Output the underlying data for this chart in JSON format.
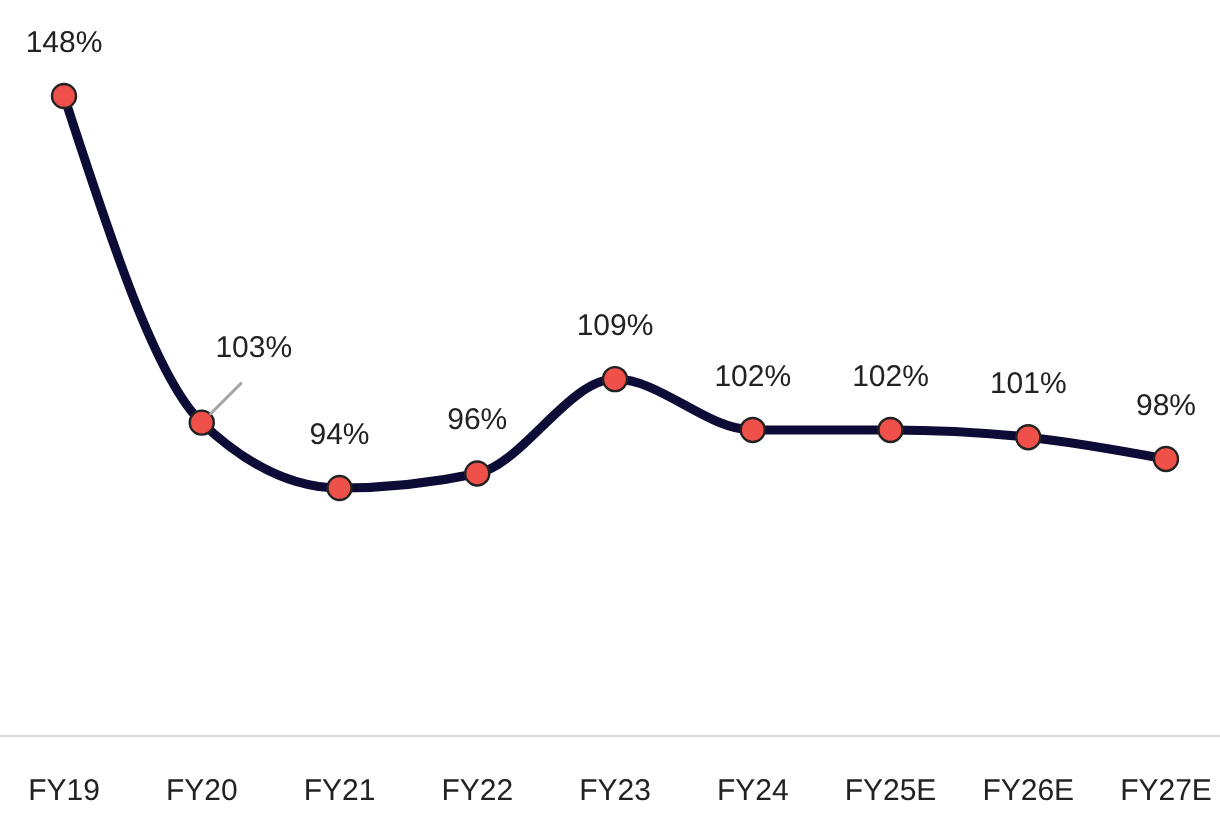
{
  "chart_data": {
    "type": "line",
    "categories": [
      "FY19",
      "FY20",
      "FY21",
      "FY22",
      "FY23",
      "FY24",
      "FY25E",
      "FY26E",
      "FY27E"
    ],
    "series": [
      {
        "color": "#0c0c36",
        "values": [
          148,
          103,
          94,
          96,
          109,
          102,
          102,
          101,
          98
        ],
        "value_labels": [
          "148%",
          "103%",
          "94%",
          "96%",
          "109%",
          "102%",
          "102%",
          "101%",
          "98%"
        ]
      }
    ],
    "marker": "circle",
    "line_style": "solid"
  }
}
